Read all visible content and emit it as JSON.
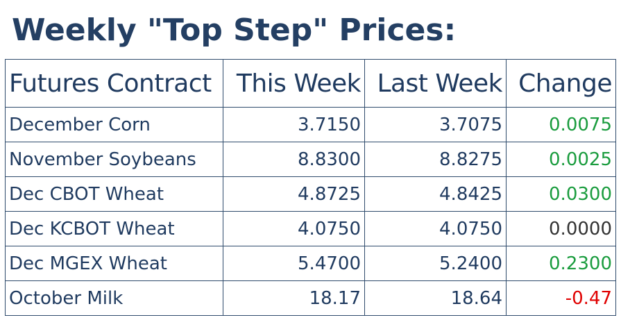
{
  "title": "Weekly \"Top Step\" Prices:",
  "table": {
    "headers": {
      "contract": "Futures Contract",
      "this_week": "This Week",
      "last_week": "Last Week",
      "change": "Change"
    },
    "rows": [
      {
        "contract": "December Corn",
        "this_week": "3.7150",
        "last_week": "3.7075",
        "change": "0.0075",
        "change_color": "#1a9c3e"
      },
      {
        "contract": "November Soybeans",
        "this_week": "8.8300",
        "last_week": "8.8275",
        "change": "0.0025",
        "change_color": "#1a9c3e"
      },
      {
        "contract": "Dec CBOT Wheat",
        "this_week": "4.8725",
        "last_week": "4.8425",
        "change": "0.0300",
        "change_color": "#1a9c3e"
      },
      {
        "contract": "Dec KCBOT Wheat",
        "this_week": "4.0750",
        "last_week": "4.0750",
        "change": "0.0000",
        "change_color": "#333333"
      },
      {
        "contract": "Dec MGEX Wheat",
        "this_week": "5.4700",
        "last_week": "5.2400",
        "change": "0.2300",
        "change_color": "#1a9c3e"
      },
      {
        "contract": "October Milk",
        "this_week": "18.17",
        "last_week": "18.64",
        "change": "-0.47",
        "change_color": "#e00000"
      }
    ]
  },
  "colors": {
    "title": "#243f63",
    "text": "#1f3a5f",
    "border": "#2e4a6b",
    "positive": "#1a9c3e",
    "neutral": "#333333",
    "negative": "#e00000"
  }
}
